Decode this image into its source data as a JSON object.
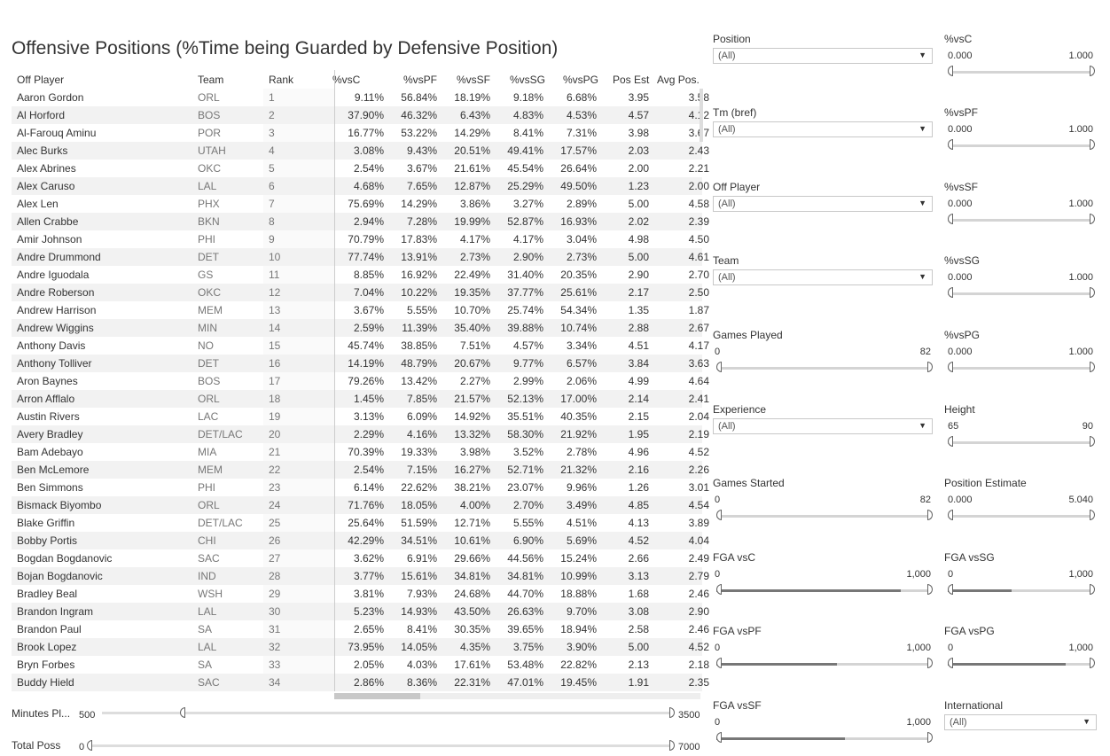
{
  "title": "Offensive Positions (%Time being Guarded by Defensive Position)",
  "table": {
    "headers": {
      "player": "Off Player",
      "team": "Team",
      "rank": "Rank",
      "vsC": "%vsC",
      "vsPF": "%vsPF",
      "vsSF": "%vsSF",
      "vsSG": "%vsSG",
      "vsPG": "%vsPG",
      "posEst": "Pos Est",
      "avgPos": "Avg Pos."
    },
    "rows": [
      [
        "Aaron Gordon",
        "ORL",
        "1",
        "9.11%",
        "56.84%",
        "18.19%",
        "9.18%",
        "6.68%",
        "3.95",
        "3.58"
      ],
      [
        "Al Horford",
        "BOS",
        "2",
        "37.90%",
        "46.32%",
        "6.43%",
        "4.83%",
        "4.53%",
        "4.57",
        "4.12"
      ],
      [
        "Al-Farouq Aminu",
        "POR",
        "3",
        "16.77%",
        "53.22%",
        "14.29%",
        "8.41%",
        "7.31%",
        "3.98",
        "3.67"
      ],
      [
        "Alec Burks",
        "UTAH",
        "4",
        "3.08%",
        "9.43%",
        "20.51%",
        "49.41%",
        "17.57%",
        "2.03",
        "2.43"
      ],
      [
        "Alex Abrines",
        "OKC",
        "5",
        "2.54%",
        "3.67%",
        "21.61%",
        "45.54%",
        "26.64%",
        "2.00",
        "2.21"
      ],
      [
        "Alex Caruso",
        "LAL",
        "6",
        "4.68%",
        "7.65%",
        "12.87%",
        "25.29%",
        "49.50%",
        "1.23",
        "2.00"
      ],
      [
        "Alex Len",
        "PHX",
        "7",
        "75.69%",
        "14.29%",
        "3.86%",
        "3.27%",
        "2.89%",
        "5.00",
        "4.58"
      ],
      [
        "Allen Crabbe",
        "BKN",
        "8",
        "2.94%",
        "7.28%",
        "19.99%",
        "52.87%",
        "16.93%",
        "2.02",
        "2.39"
      ],
      [
        "Amir Johnson",
        "PHI",
        "9",
        "70.79%",
        "17.83%",
        "4.17%",
        "4.17%",
        "3.04%",
        "4.98",
        "4.50"
      ],
      [
        "Andre Drummond",
        "DET",
        "10",
        "77.74%",
        "13.91%",
        "2.73%",
        "2.90%",
        "2.73%",
        "5.00",
        "4.61"
      ],
      [
        "Andre Iguodala",
        "GS",
        "11",
        "8.85%",
        "16.92%",
        "22.49%",
        "31.40%",
        "20.35%",
        "2.90",
        "2.70"
      ],
      [
        "Andre Roberson",
        "OKC",
        "12",
        "7.04%",
        "10.22%",
        "19.35%",
        "37.77%",
        "25.61%",
        "2.17",
        "2.50"
      ],
      [
        "Andrew Harrison",
        "MEM",
        "13",
        "3.67%",
        "5.55%",
        "10.70%",
        "25.74%",
        "54.34%",
        "1.35",
        "1.87"
      ],
      [
        "Andrew Wiggins",
        "MIN",
        "14",
        "2.59%",
        "11.39%",
        "35.40%",
        "39.88%",
        "10.74%",
        "2.88",
        "2.67"
      ],
      [
        "Anthony Davis",
        "NO",
        "15",
        "45.74%",
        "38.85%",
        "7.51%",
        "4.57%",
        "3.34%",
        "4.51",
        "4.17"
      ],
      [
        "Anthony Tolliver",
        "DET",
        "16",
        "14.19%",
        "48.79%",
        "20.67%",
        "9.77%",
        "6.57%",
        "3.84",
        "3.63"
      ],
      [
        "Aron Baynes",
        "BOS",
        "17",
        "79.26%",
        "13.42%",
        "2.27%",
        "2.99%",
        "2.06%",
        "4.99",
        "4.64"
      ],
      [
        "Arron Afflalo",
        "ORL",
        "18",
        "1.45%",
        "7.85%",
        "21.57%",
        "52.13%",
        "17.00%",
        "2.14",
        "2.41"
      ],
      [
        "Austin Rivers",
        "LAC",
        "19",
        "3.13%",
        "6.09%",
        "14.92%",
        "35.51%",
        "40.35%",
        "2.15",
        "2.04"
      ],
      [
        "Avery Bradley",
        "DET/LAC",
        "20",
        "2.29%",
        "4.16%",
        "13.32%",
        "58.30%",
        "21.92%",
        "1.95",
        "2.19"
      ],
      [
        "Bam Adebayo",
        "MIA",
        "21",
        "70.39%",
        "19.33%",
        "3.98%",
        "3.52%",
        "2.78%",
        "4.96",
        "4.52"
      ],
      [
        "Ben McLemore",
        "MEM",
        "22",
        "2.54%",
        "7.15%",
        "16.27%",
        "52.71%",
        "21.32%",
        "2.16",
        "2.26"
      ],
      [
        "Ben Simmons",
        "PHI",
        "23",
        "6.14%",
        "22.62%",
        "38.21%",
        "23.07%",
        "9.96%",
        "1.26",
        "3.01"
      ],
      [
        "Bismack Biyombo",
        "ORL",
        "24",
        "71.76%",
        "18.05%",
        "4.00%",
        "2.70%",
        "3.49%",
        "4.85",
        "4.54"
      ],
      [
        "Blake Griffin",
        "DET/LAC",
        "25",
        "25.64%",
        "51.59%",
        "12.71%",
        "5.55%",
        "4.51%",
        "4.13",
        "3.89"
      ],
      [
        "Bobby Portis",
        "CHI",
        "26",
        "42.29%",
        "34.51%",
        "10.61%",
        "6.90%",
        "5.69%",
        "4.52",
        "4.04"
      ],
      [
        "Bogdan Bogdanovic",
        "SAC",
        "27",
        "3.62%",
        "6.91%",
        "29.66%",
        "44.56%",
        "15.24%",
        "2.66",
        "2.49"
      ],
      [
        "Bojan Bogdanovic",
        "IND",
        "28",
        "3.77%",
        "15.61%",
        "34.81%",
        "34.81%",
        "10.99%",
        "3.13",
        "2.79"
      ],
      [
        "Bradley Beal",
        "WSH",
        "29",
        "3.81%",
        "7.93%",
        "24.68%",
        "44.70%",
        "18.88%",
        "1.68",
        "2.46"
      ],
      [
        "Brandon Ingram",
        "LAL",
        "30",
        "5.23%",
        "14.93%",
        "43.50%",
        "26.63%",
        "9.70%",
        "3.08",
        "2.90"
      ],
      [
        "Brandon Paul",
        "SA",
        "31",
        "2.65%",
        "8.41%",
        "30.35%",
        "39.65%",
        "18.94%",
        "2.58",
        "2.46"
      ],
      [
        "Brook Lopez",
        "LAL",
        "32",
        "73.95%",
        "14.05%",
        "4.35%",
        "3.75%",
        "3.90%",
        "5.00",
        "4.52"
      ],
      [
        "Bryn Forbes",
        "SA",
        "33",
        "2.05%",
        "4.03%",
        "17.61%",
        "53.48%",
        "22.82%",
        "2.13",
        "2.18"
      ],
      [
        "Buddy Hield",
        "SAC",
        "34",
        "2.86%",
        "8.36%",
        "22.31%",
        "47.01%",
        "19.45%",
        "1.91",
        "2.35"
      ]
    ]
  },
  "bottom_sliders": {
    "minutes": {
      "label": "Minutes Pl...",
      "min": "500",
      "max": "3500"
    },
    "poss": {
      "label": "Total Poss",
      "min": "0",
      "max": "7000"
    }
  },
  "filters": {
    "position": {
      "label": "Position",
      "value": "(All)"
    },
    "tm_bref": {
      "label": "Tm (bref)",
      "value": "(All)"
    },
    "off_player": {
      "label": "Off Player",
      "value": "(All)"
    },
    "team": {
      "label": "Team",
      "value": "(All)"
    },
    "games_played": {
      "label": "Games Played",
      "min": "0",
      "max": "82"
    },
    "experience": {
      "label": "Experience",
      "value": "(All)"
    },
    "games_started": {
      "label": "Games Started",
      "min": "0",
      "max": "82"
    },
    "fga_vsc": {
      "label": "FGA vsC",
      "min": "0",
      "max": "1,000"
    },
    "fga_vspf": {
      "label": "FGA vsPF",
      "min": "0",
      "max": "1,000"
    },
    "fga_vssf": {
      "label": "FGA vsSF",
      "min": "0",
      "max": "1,000"
    },
    "vsc": {
      "label": "%vsC",
      "min": "0.000",
      "max": "1.000"
    },
    "vspf": {
      "label": "%vsPF",
      "min": "0.000",
      "max": "1.000"
    },
    "vssf": {
      "label": "%vsSF",
      "min": "0.000",
      "max": "1.000"
    },
    "vssg": {
      "label": "%vsSG",
      "min": "0.000",
      "max": "1.000"
    },
    "vspg": {
      "label": "%vsPG",
      "min": "0.000",
      "max": "1.000"
    },
    "height": {
      "label": "Height",
      "min": "65",
      "max": "90"
    },
    "pos_est": {
      "label": "Position Estimate",
      "min": "0.000",
      "max": "5.040"
    },
    "fga_vssg": {
      "label": "FGA vsSG",
      "min": "0",
      "max": "1,000"
    },
    "fga_vspg": {
      "label": "FGA vsPG",
      "min": "0",
      "max": "1,000"
    },
    "international": {
      "label": "International",
      "value": "(All)"
    }
  },
  "fga_density": {
    "fga_vsc": 0.86,
    "fga_vspf": 0.56,
    "fga_vssf": 0.6,
    "fga_vssg": 0.44,
    "fga_vspg": 0.81
  }
}
